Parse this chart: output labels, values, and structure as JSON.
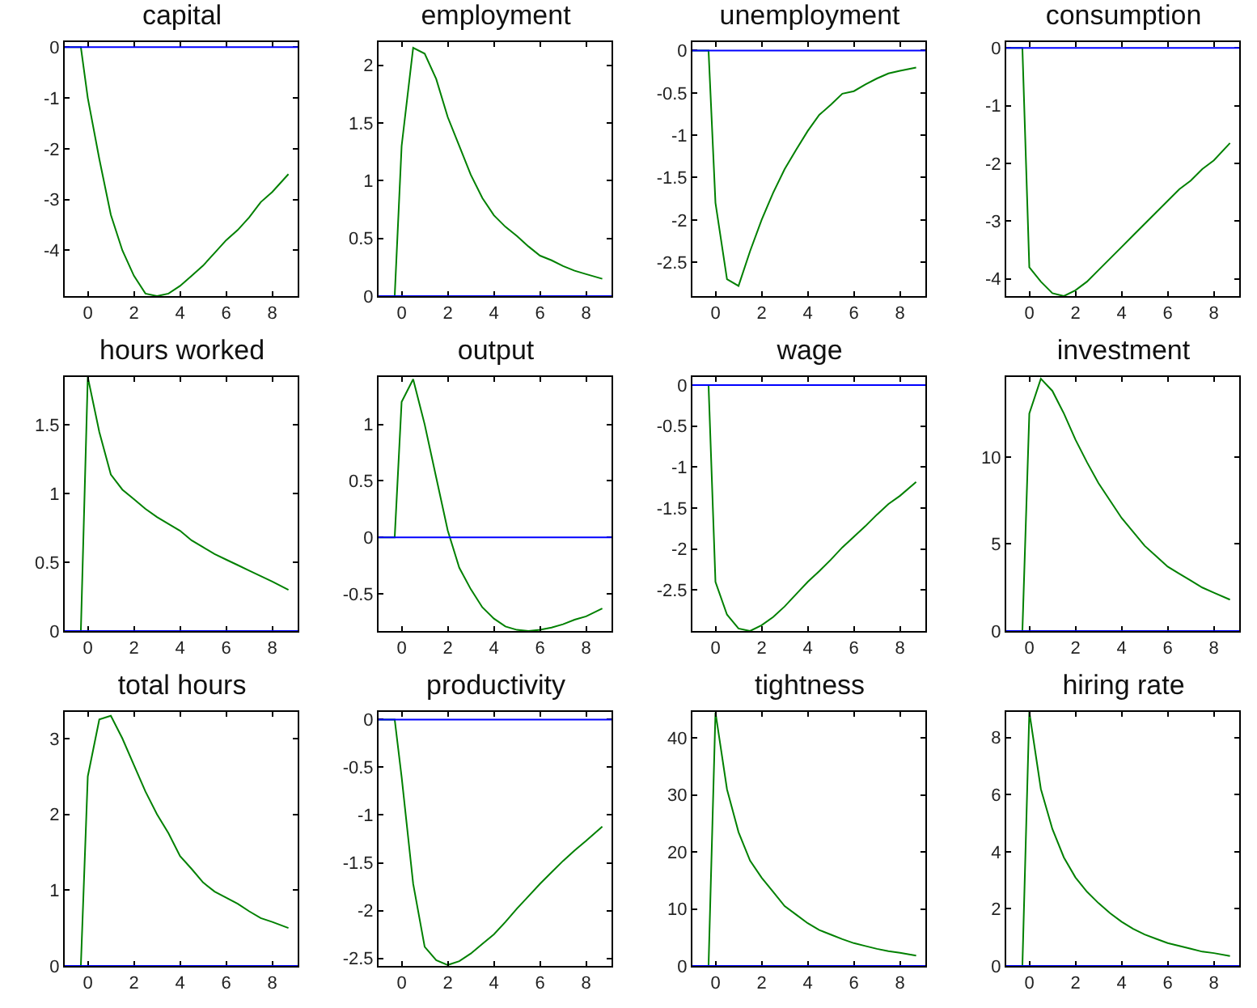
{
  "chart_data": [
    {
      "type": "line",
      "title": "capital",
      "x": [
        -1,
        -0.3,
        0,
        0.5,
        1,
        1.5,
        2,
        2.5,
        3,
        3.5,
        4,
        4.5,
        5,
        5.5,
        6,
        6.5,
        7,
        7.5,
        8,
        8.7
      ],
      "xlim": [
        -1,
        9.1
      ],
      "xticks": [
        0,
        2,
        4,
        6,
        8
      ],
      "ylim": [
        -4.9,
        0.1
      ],
      "yticks": [
        -4,
        -3,
        -2,
        -1,
        0
      ],
      "ref_lines": [
        {
          "axis": "y",
          "value": 0,
          "color": "#0000ff"
        }
      ],
      "series": [
        {
          "color": "#008000",
          "values": [
            0,
            0,
            -1,
            -2.2,
            -3.3,
            -4,
            -4.5,
            -4.85,
            -4.9,
            -4.85,
            -4.7,
            -4.5,
            -4.3,
            -4.05,
            -3.8,
            -3.6,
            -3.35,
            -3.05,
            -2.85,
            -2.5
          ]
        }
      ]
    },
    {
      "type": "line",
      "title": "employment",
      "x": [
        -1,
        -0.3,
        0,
        0.5,
        1,
        1.5,
        2,
        2.5,
        3,
        3.5,
        4,
        4.5,
        5,
        5.5,
        6,
        6.5,
        7,
        7.5,
        8,
        8.7
      ],
      "xlim": [
        -1,
        9.1
      ],
      "xticks": [
        0,
        2,
        4,
        6,
        8
      ],
      "ylim": [
        0,
        2.2
      ],
      "yticks": [
        0,
        0.5,
        1,
        1.5,
        2
      ],
      "ref_lines": [
        {
          "axis": "y",
          "value": 0,
          "color": "#0000ff"
        }
      ],
      "series": [
        {
          "color": "#008000",
          "values": [
            0,
            0,
            1.3,
            2.15,
            2.1,
            1.88,
            1.55,
            1.3,
            1.05,
            0.85,
            0.7,
            0.6,
            0.52,
            0.43,
            0.35,
            0.31,
            0.26,
            0.22,
            0.19,
            0.15
          ]
        }
      ]
    },
    {
      "type": "line",
      "title": "unemployment",
      "x": [
        -1,
        -0.3,
        0,
        0.5,
        1,
        1.5,
        2,
        2.5,
        3,
        3.5,
        4,
        4.5,
        5,
        5.5,
        6,
        6.5,
        7,
        7.5,
        8,
        8.7
      ],
      "xlim": [
        -1,
        9.1
      ],
      "xticks": [
        0,
        2,
        4,
        6,
        8
      ],
      "ylim": [
        -2.9,
        0.1
      ],
      "yticks": [
        -2.5,
        -2,
        -1.5,
        -1,
        -0.5,
        0
      ],
      "ref_lines": [
        {
          "axis": "y",
          "value": 0,
          "color": "#0000ff"
        }
      ],
      "series": [
        {
          "color": "#008000",
          "values": [
            0,
            0,
            -1.8,
            -2.7,
            -2.78,
            -2.37,
            -2,
            -1.68,
            -1.4,
            -1.17,
            -0.95,
            -0.76,
            -0.64,
            -0.51,
            -0.48,
            -0.4,
            -0.33,
            -0.27,
            -0.24,
            -0.2
          ]
        }
      ]
    },
    {
      "type": "line",
      "title": "consumption",
      "x": [
        -1,
        -0.3,
        0,
        0.5,
        1,
        1.5,
        2,
        2.5,
        3,
        3.5,
        4,
        4.5,
        5,
        5.5,
        6,
        6.5,
        7,
        7.5,
        8,
        8.7
      ],
      "xlim": [
        -1,
        9.1
      ],
      "xticks": [
        0,
        2,
        4,
        6,
        8
      ],
      "ylim": [
        -4.3,
        0.1
      ],
      "yticks": [
        -4,
        -3,
        -2,
        -1,
        0
      ],
      "ref_lines": [
        {
          "axis": "y",
          "value": 0,
          "color": "#0000ff"
        }
      ],
      "series": [
        {
          "color": "#008000",
          "values": [
            0,
            0,
            -3.8,
            -4.05,
            -4.25,
            -4.3,
            -4.2,
            -4.05,
            -3.85,
            -3.65,
            -3.45,
            -3.25,
            -3.05,
            -2.85,
            -2.65,
            -2.45,
            -2.3,
            -2.1,
            -1.95,
            -1.65
          ]
        }
      ]
    },
    {
      "type": "line",
      "title": "hours worked",
      "x": [
        -1,
        -0.3,
        0,
        0.5,
        1,
        1.5,
        2,
        2.5,
        3,
        3.5,
        4,
        4.5,
        5,
        5.5,
        6,
        6.5,
        7,
        7.5,
        8,
        8.7
      ],
      "xlim": [
        -1,
        9.1
      ],
      "xticks": [
        0,
        2,
        4,
        6,
        8
      ],
      "ylim": [
        0,
        1.85
      ],
      "yticks": [
        0,
        0.5,
        1,
        1.5
      ],
      "ref_lines": [
        {
          "axis": "y",
          "value": 0,
          "color": "#0000ff"
        }
      ],
      "series": [
        {
          "color": "#008000",
          "values": [
            0,
            0,
            1.85,
            1.45,
            1.14,
            1.03,
            0.96,
            0.89,
            0.83,
            0.78,
            0.73,
            0.66,
            0.61,
            0.56,
            0.52,
            0.48,
            0.44,
            0.4,
            0.36,
            0.3
          ]
        }
      ]
    },
    {
      "type": "line",
      "title": "output",
      "x": [
        -1,
        -0.3,
        0,
        0.5,
        1,
        1.5,
        2,
        2.5,
        3,
        3.5,
        4,
        4.5,
        5,
        5.5,
        6,
        6.5,
        7,
        7.5,
        8,
        8.7
      ],
      "xlim": [
        -1,
        9.1
      ],
      "xticks": [
        0,
        2,
        4,
        6,
        8
      ],
      "ylim": [
        -0.83,
        1.42
      ],
      "yticks": [
        -0.5,
        0,
        0.5,
        1
      ],
      "ref_lines": [
        {
          "axis": "y",
          "value": 0,
          "color": "#0000ff"
        }
      ],
      "series": [
        {
          "color": "#008000",
          "values": [
            0,
            0,
            1.2,
            1.4,
            1,
            0.53,
            0.06,
            -0.27,
            -0.46,
            -0.62,
            -0.72,
            -0.79,
            -0.82,
            -0.83,
            -0.82,
            -0.8,
            -0.77,
            -0.73,
            -0.7,
            -0.63
          ]
        }
      ]
    },
    {
      "type": "line",
      "title": "wage",
      "x": [
        -1,
        -0.3,
        0,
        0.5,
        1,
        1.5,
        2,
        2.5,
        3,
        3.5,
        4,
        4.5,
        5,
        5.5,
        6,
        6.5,
        7,
        7.5,
        8,
        8.7
      ],
      "xlim": [
        -1,
        9.1
      ],
      "xticks": [
        0,
        2,
        4,
        6,
        8
      ],
      "ylim": [
        -3,
        0.1
      ],
      "yticks": [
        -2.5,
        -2,
        -1.5,
        -1,
        -0.5,
        0
      ],
      "ref_lines": [
        {
          "axis": "y",
          "value": 0,
          "color": "#0000ff"
        }
      ],
      "series": [
        {
          "color": "#008000",
          "values": [
            0,
            0,
            -2.4,
            -2.8,
            -2.97,
            -3,
            -2.93,
            -2.83,
            -2.7,
            -2.55,
            -2.4,
            -2.27,
            -2.13,
            -1.98,
            -1.85,
            -1.72,
            -1.58,
            -1.45,
            -1.35,
            -1.18
          ]
        }
      ]
    },
    {
      "type": "line",
      "title": "investment",
      "x": [
        -1,
        -0.3,
        0,
        0.5,
        1,
        1.5,
        2,
        2.5,
        3,
        3.5,
        4,
        4.5,
        5,
        5.5,
        6,
        6.5,
        7,
        7.5,
        8,
        8.7
      ],
      "xlim": [
        -1,
        9.1
      ],
      "xticks": [
        0,
        2,
        4,
        6,
        8
      ],
      "ylim": [
        0,
        14.6
      ],
      "yticks": [
        0,
        5,
        10
      ],
      "ref_lines": [
        {
          "axis": "y",
          "value": 0,
          "color": "#0000ff"
        }
      ],
      "series": [
        {
          "color": "#008000",
          "values": [
            0,
            0,
            12.5,
            14.5,
            13.8,
            12.5,
            11,
            9.7,
            8.5,
            7.5,
            6.5,
            5.7,
            4.9,
            4.3,
            3.7,
            3.3,
            2.9,
            2.5,
            2.2,
            1.8
          ]
        }
      ]
    },
    {
      "type": "line",
      "title": "total hours",
      "x": [
        -1,
        -0.3,
        0,
        0.5,
        1,
        1.5,
        2,
        2.5,
        3,
        3.5,
        4,
        4.5,
        5,
        5.5,
        6,
        6.5,
        7,
        7.5,
        8,
        8.7
      ],
      "xlim": [
        -1,
        9.1
      ],
      "xticks": [
        0,
        2,
        4,
        6,
        8
      ],
      "ylim": [
        0,
        3.35
      ],
      "yticks": [
        0,
        1,
        2,
        3
      ],
      "ref_lines": [
        {
          "axis": "y",
          "value": 0,
          "color": "#0000ff"
        }
      ],
      "series": [
        {
          "color": "#008000",
          "values": [
            0,
            0,
            2.5,
            3.25,
            3.3,
            3,
            2.65,
            2.3,
            2,
            1.75,
            1.45,
            1.28,
            1.1,
            0.98,
            0.9,
            0.82,
            0.72,
            0.63,
            0.58,
            0.5
          ]
        }
      ]
    },
    {
      "type": "line",
      "title": "productivity",
      "x": [
        -1,
        -0.3,
        0,
        0.5,
        1,
        1.5,
        2,
        2.5,
        3,
        3.5,
        4,
        4.5,
        5,
        5.5,
        6,
        6.5,
        7,
        7.5,
        8,
        8.7
      ],
      "xlim": [
        -1,
        9.1
      ],
      "xticks": [
        0,
        2,
        4,
        6,
        8
      ],
      "ylim": [
        -2.58,
        0.08
      ],
      "yticks": [
        -2.5,
        -2,
        -1.5,
        -1,
        -0.5,
        0
      ],
      "ref_lines": [
        {
          "axis": "y",
          "value": 0,
          "color": "#0000ff"
        }
      ],
      "series": [
        {
          "color": "#008000",
          "values": [
            0,
            0,
            -0.6,
            -1.72,
            -2.38,
            -2.52,
            -2.57,
            -2.53,
            -2.45,
            -2.35,
            -2.25,
            -2.12,
            -1.98,
            -1.85,
            -1.72,
            -1.6,
            -1.48,
            -1.37,
            -1.27,
            -1.12
          ]
        }
      ]
    },
    {
      "type": "line",
      "title": "tightness",
      "x": [
        -1,
        -0.3,
        0,
        0.5,
        1,
        1.5,
        2,
        2.5,
        3,
        3.5,
        4,
        4.5,
        5,
        5.5,
        6,
        6.5,
        7,
        7.5,
        8,
        8.7
      ],
      "xlim": [
        -1,
        9.1
      ],
      "xticks": [
        0,
        2,
        4,
        6,
        8
      ],
      "ylim": [
        0,
        44.6
      ],
      "yticks": [
        0,
        10,
        20,
        30,
        40
      ],
      "ref_lines": [
        {
          "axis": "y",
          "value": 0,
          "color": "#0000ff"
        }
      ],
      "series": [
        {
          "color": "#008000",
          "values": [
            0,
            0,
            44.5,
            31,
            23.5,
            18.5,
            15.5,
            13,
            10.5,
            9,
            7.5,
            6.3,
            5.5,
            4.7,
            4,
            3.5,
            3,
            2.6,
            2.3,
            1.8
          ]
        }
      ]
    },
    {
      "type": "line",
      "title": "hiring rate",
      "x": [
        -1,
        -0.3,
        0,
        0.5,
        1,
        1.5,
        2,
        2.5,
        3,
        3.5,
        4,
        4.5,
        5,
        5.5,
        6,
        6.5,
        7,
        7.5,
        8,
        8.7
      ],
      "xlim": [
        -1,
        9.1
      ],
      "xticks": [
        0,
        2,
        4,
        6,
        8
      ],
      "ylim": [
        0,
        8.9
      ],
      "yticks": [
        0,
        2,
        4,
        6,
        8
      ],
      "ref_lines": [
        {
          "axis": "y",
          "value": 0,
          "color": "#0000ff"
        }
      ],
      "series": [
        {
          "color": "#008000",
          "values": [
            0,
            0,
            8.9,
            6.2,
            4.8,
            3.8,
            3.1,
            2.6,
            2.2,
            1.85,
            1.55,
            1.3,
            1.1,
            0.95,
            0.8,
            0.7,
            0.6,
            0.5,
            0.45,
            0.35
          ]
        }
      ]
    }
  ]
}
